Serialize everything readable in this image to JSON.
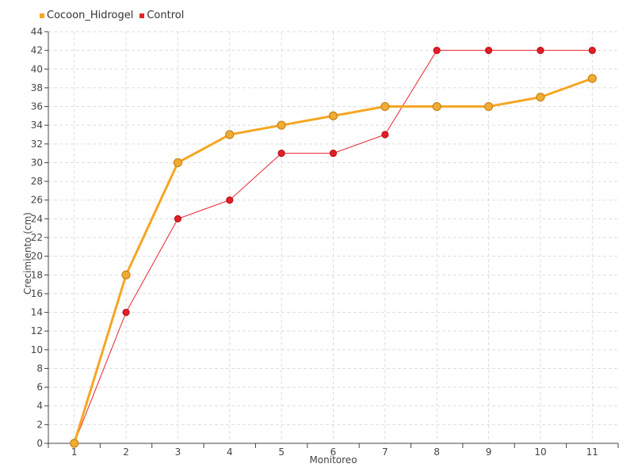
{
  "chart_data": {
    "type": "line",
    "title": "",
    "xlabel": "Monitoreo",
    "ylabel": "Crecimiento (cm)",
    "categories": [
      "1",
      "2",
      "3",
      "4",
      "5",
      "6",
      "7",
      "8",
      "9",
      "10",
      "11"
    ],
    "ylim": [
      0,
      44
    ],
    "ytick_step": 2,
    "grid": true,
    "legend_position": "top-left",
    "series": [
      {
        "name": "Cocoon_Hidrogel",
        "color": "#f5a623",
        "marker_fill": "#f0ac33",
        "marker_edge": "#c8841a",
        "values": [
          0,
          18,
          30,
          33,
          34,
          35,
          36,
          36,
          36,
          37,
          39
        ]
      },
      {
        "name": "Control",
        "color": "#e8222b",
        "marker_fill": "#e02027",
        "marker_edge": "#c21018",
        "values": [
          0,
          14,
          24,
          26,
          31,
          31,
          33,
          42,
          42,
          42,
          42
        ]
      }
    ]
  }
}
